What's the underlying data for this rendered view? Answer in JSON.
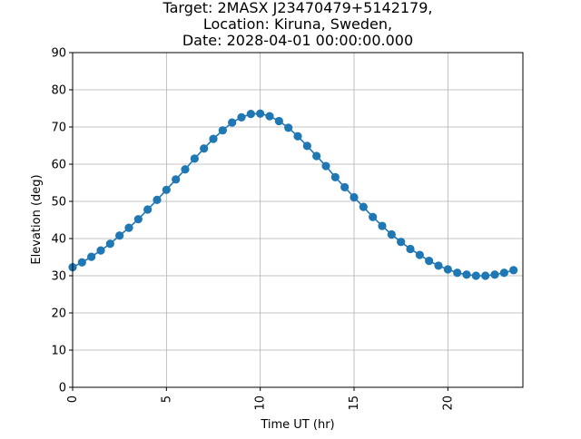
{
  "chart_data": {
    "type": "line",
    "title_lines": [
      "Target: 2MASX J23470479+5142179,",
      "Location: Kiruna, Sweden,",
      "Date: 2028-04-01 00:00:00.000"
    ],
    "xlabel": "Time UT (hr)",
    "ylabel": "Elevation (deg)",
    "xlim": [
      0,
      24
    ],
    "ylim": [
      0,
      90
    ],
    "xticks": [
      0,
      5,
      10,
      15,
      20
    ],
    "yticks": [
      0,
      10,
      20,
      30,
      40,
      50,
      60,
      70,
      80,
      90
    ],
    "grid": true,
    "marker": "circle",
    "colors": {
      "series": "#1f77b4",
      "grid": "#b0b0b0",
      "axes": "#000000"
    },
    "series": [
      {
        "x": [
          0,
          0.5,
          1,
          1.5,
          2,
          2.5,
          3,
          3.5,
          4,
          4.5,
          5,
          5.5,
          6,
          6.5,
          7,
          7.5,
          8,
          8.5,
          9,
          9.5,
          10,
          10.5,
          11,
          11.5,
          12,
          12.5,
          13,
          13.5,
          14,
          14.5,
          15,
          15.5,
          16,
          16.5,
          17,
          17.5,
          18,
          18.5,
          19,
          19.5,
          20,
          20.5,
          21,
          21.5,
          22,
          22.5,
          23,
          23.5
        ],
        "y": [
          32.3,
          33.6,
          35.1,
          36.8,
          38.6,
          40.8,
          42.9,
          45.2,
          47.8,
          50.4,
          53.1,
          55.9,
          58.6,
          61.5,
          64.2,
          66.8,
          69.1,
          71.2,
          72.6,
          73.5,
          73.6,
          72.9,
          71.6,
          69.8,
          67.5,
          64.9,
          62.2,
          59.5,
          56.5,
          53.8,
          51.1,
          48.5,
          45.8,
          43.4,
          41.1,
          39.1,
          37.2,
          35.6,
          34.0,
          32.7,
          31.7,
          30.8,
          30.3,
          30.0,
          30.0,
          30.3,
          30.8,
          31.5
        ]
      }
    ]
  }
}
